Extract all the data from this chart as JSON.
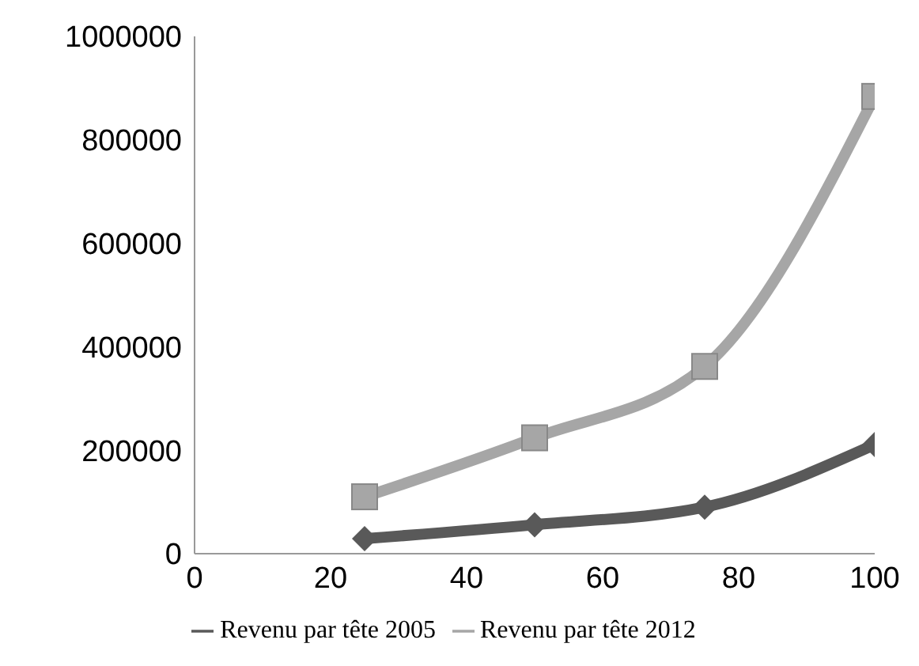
{
  "chart_data": {
    "type": "line",
    "x": [
      25,
      50,
      75,
      100
    ],
    "xlim": [
      0,
      100
    ],
    "xticks": [
      0,
      20,
      40,
      60,
      80,
      100
    ],
    "ylim": [
      0,
      1000000
    ],
    "yticks": [
      0,
      200000,
      400000,
      600000,
      800000,
      1000000
    ],
    "grid": false,
    "legend": "bottom",
    "series": [
      {
        "name": "Revenu par tête 2005",
        "color": "#595959",
        "marker": "diamond",
        "values": [
          29000,
          56000,
          90000,
          211000
        ]
      },
      {
        "name": "Revenu par tête 2012",
        "color": "#a6a6a6",
        "marker": "square",
        "values": [
          110000,
          224000,
          362000,
          884000
        ]
      }
    ]
  }
}
